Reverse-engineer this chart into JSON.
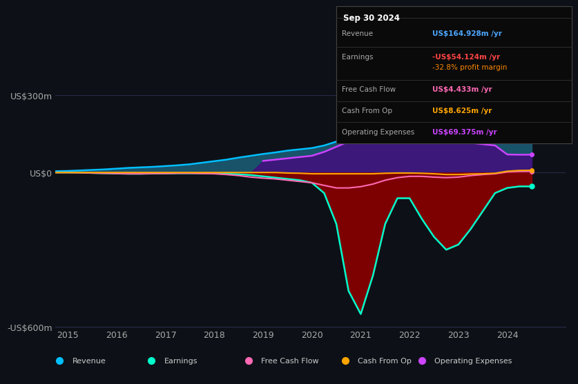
{
  "background_color": "#0d1117",
  "years": [
    2014.75,
    2015,
    2015.25,
    2015.5,
    2015.75,
    2016,
    2016.25,
    2016.5,
    2016.75,
    2017,
    2017.25,
    2017.5,
    2017.75,
    2018,
    2018.25,
    2018.5,
    2018.75,
    2019,
    2019.25,
    2019.5,
    2019.75,
    2020,
    2020.25,
    2020.5,
    2020.75,
    2021,
    2021.25,
    2021.5,
    2021.75,
    2022,
    2022.25,
    2022.5,
    2022.75,
    2023,
    2023.25,
    2023.5,
    2023.75,
    2024,
    2024.25,
    2024.5
  ],
  "revenue": [
    5,
    6,
    8,
    10,
    12,
    15,
    18,
    20,
    22,
    25,
    28,
    32,
    38,
    44,
    50,
    58,
    65,
    72,
    78,
    85,
    90,
    95,
    105,
    120,
    140,
    160,
    175,
    185,
    190,
    195,
    195,
    190,
    185,
    180,
    175,
    172,
    168,
    165,
    164,
    164.9
  ],
  "earnings": [
    0,
    0,
    0,
    -2,
    -3,
    -4,
    -5,
    -5,
    -4,
    -4,
    -3,
    -3,
    -3,
    -4,
    -5,
    -7,
    -10,
    -15,
    -20,
    -25,
    -30,
    -40,
    -80,
    -200,
    -460,
    -550,
    -400,
    -200,
    -100,
    -100,
    -180,
    -250,
    -300,
    -280,
    -220,
    -150,
    -80,
    -60,
    -54,
    -54.1
  ],
  "free_cash_flow": [
    0,
    0,
    -1,
    -2,
    -3,
    -4,
    -5,
    -5,
    -4,
    -4,
    -3,
    -3,
    -4,
    -5,
    -8,
    -12,
    -18,
    -22,
    -25,
    -30,
    -35,
    -40,
    -50,
    -60,
    -60,
    -55,
    -45,
    -30,
    -20,
    -15,
    -15,
    -18,
    -20,
    -18,
    -12,
    -8,
    -5,
    2,
    4,
    4.4
  ],
  "cash_from_op": [
    0,
    0,
    0,
    0,
    0,
    0,
    0,
    0,
    0,
    0,
    0,
    0,
    0,
    0,
    0,
    0,
    0,
    0,
    0,
    -2,
    -3,
    -5,
    -5,
    -5,
    -5,
    -5,
    -5,
    -3,
    -2,
    -2,
    -3,
    -5,
    -8,
    -8,
    -6,
    -5,
    -3,
    5,
    8,
    8.6
  ],
  "operating_expenses": [
    0,
    0,
    0,
    0,
    0,
    0,
    0,
    0,
    0,
    0,
    0,
    0,
    0,
    0,
    0,
    0,
    0,
    45,
    50,
    55,
    60,
    65,
    80,
    100,
    120,
    145,
    150,
    155,
    150,
    145,
    140,
    130,
    125,
    120,
    115,
    110,
    105,
    70,
    69,
    69.4
  ],
  "ylim": [
    -600,
    300
  ],
  "yticks": [
    -600,
    0,
    300
  ],
  "ytick_labels": [
    "-US$600m",
    "US$0",
    "US$300m"
  ],
  "xlim": [
    2014.75,
    2025.2
  ],
  "xticks": [
    2015,
    2016,
    2017,
    2018,
    2019,
    2020,
    2021,
    2022,
    2023,
    2024
  ],
  "revenue_color": "#00bfff",
  "earnings_color": "#00ffcc",
  "fcf_color": "#ff69b4",
  "cashop_color": "#ffa500",
  "opex_color": "#cc44ff",
  "revenue_fill": "#1a5f7a",
  "earnings_fill": "#8b0000",
  "opex_fill": "#4b0082",
  "info_box": {
    "title": "Sep 30 2024",
    "rows": [
      {
        "label": "Revenue",
        "value": "US$164.928m /yr",
        "value_color": "#4da6ff",
        "extra": null,
        "extra_color": null
      },
      {
        "label": "Earnings",
        "value": "-US$54.124m /yr",
        "value_color": "#ff4444",
        "extra": "-32.8% profit margin",
        "extra_color": "#ff8800"
      },
      {
        "label": "Free Cash Flow",
        "value": "US$4.433m /yr",
        "value_color": "#ff69b4",
        "extra": null,
        "extra_color": null
      },
      {
        "label": "Cash From Op",
        "value": "US$8.625m /yr",
        "value_color": "#ffa500",
        "extra": null,
        "extra_color": null
      },
      {
        "label": "Operating Expenses",
        "value": "US$69.375m /yr",
        "value_color": "#cc44ff",
        "extra": null,
        "extra_color": null
      }
    ]
  },
  "legend_items": [
    {
      "label": "Revenue",
      "color": "#00bfff"
    },
    {
      "label": "Earnings",
      "color": "#00ffcc"
    },
    {
      "label": "Free Cash Flow",
      "color": "#ff69b4"
    },
    {
      "label": "Cash From Op",
      "color": "#ffa500"
    },
    {
      "label": "Operating Expenses",
      "color": "#cc44ff"
    }
  ]
}
